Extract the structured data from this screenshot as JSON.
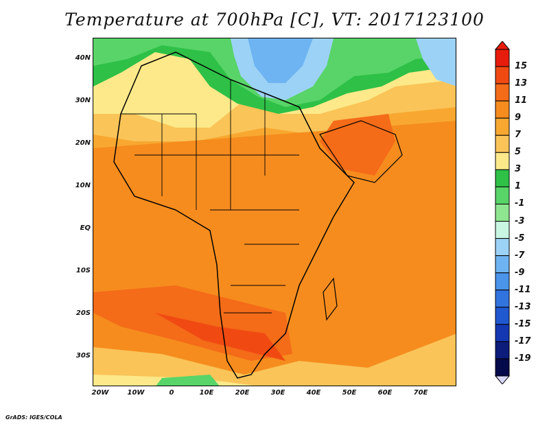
{
  "title": "Temperature at 700hPa [C], VT: 2017123100",
  "credit": "GrADS: IGES/COLA",
  "lat_labels": [
    "40N",
    "30N",
    "20N",
    "10N",
    "EQ",
    "10S",
    "20S",
    "30S"
  ],
  "lon_labels": [
    "20W",
    "10W",
    "0",
    "10E",
    "20E",
    "30E",
    "40E",
    "50E",
    "60E",
    "70E"
  ],
  "colorbar": {
    "labels": [
      "15",
      "13",
      "11",
      "9",
      "7",
      "5",
      "3",
      "1",
      "-1",
      "-3",
      "-5",
      "-7",
      "-9",
      "-11",
      "-13",
      "-15",
      "-17",
      "-19"
    ],
    "colors": [
      "#e81c0c",
      "#f04a12",
      "#f46b18",
      "#f68c1e",
      "#f8a830",
      "#fac458",
      "#fde98a",
      "#2ec047",
      "#58d468",
      "#8ee690",
      "#c8f6e2",
      "#9cd2f6",
      "#6eb4f2",
      "#4a94ea",
      "#3274de",
      "#2058d0",
      "#1438b2",
      "#0c1c7a",
      "#050a4a"
    ]
  },
  "map": {
    "region": "Africa",
    "lat_range": [
      -36,
      45
    ],
    "lon_range": [
      -23,
      80
    ],
    "variable": "Temperature at 700hPa",
    "units": "C"
  }
}
